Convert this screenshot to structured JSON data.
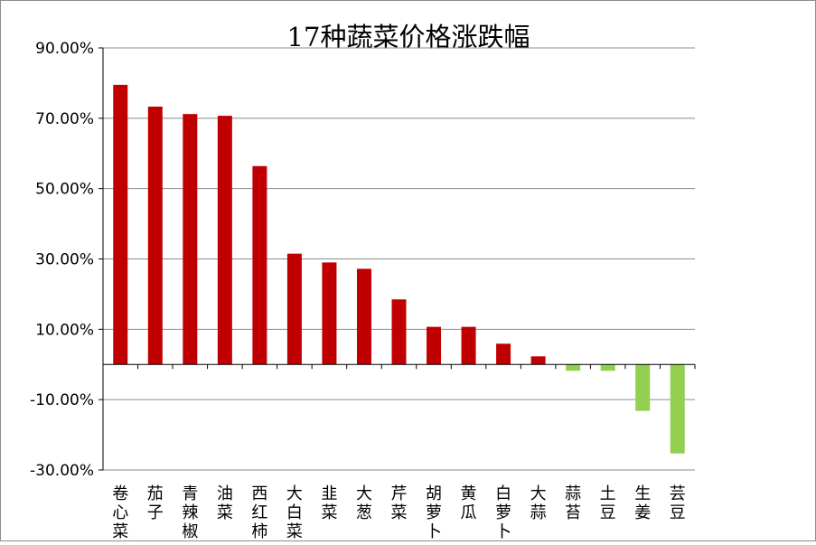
{
  "chart_data": {
    "type": "bar",
    "title": "17种蔬菜价格涨跌幅",
    "xlabel": "",
    "ylabel": "",
    "ylim": [
      -0.3,
      0.9
    ],
    "yticks": [
      -0.3,
      -0.1,
      0.1,
      0.3,
      0.5,
      0.7,
      0.9
    ],
    "ytick_labels": [
      "-30.00%",
      "-10.00%",
      "10.00%",
      "30.00%",
      "50.00%",
      "70.00%",
      "90.00%"
    ],
    "grid": true,
    "legend": "none",
    "colors": {
      "positive": "#c00000",
      "negative": "#92d050",
      "grid": "#8c8c8c",
      "axis": "#000000"
    },
    "categories": [
      "卷心菜",
      "茄子",
      "青辣椒",
      "油菜",
      "西红柿",
      "大白菜",
      "韭菜",
      "大葱",
      "芹菜",
      "胡萝卜",
      "黄瓜",
      "白萝卜",
      "大蒜",
      "蒜苔",
      "土豆",
      "生姜",
      "芸豆"
    ],
    "values": [
      0.795,
      0.733,
      0.712,
      0.707,
      0.564,
      0.315,
      0.29,
      0.272,
      0.185,
      0.107,
      0.107,
      0.059,
      0.023,
      -0.018,
      -0.018,
      -0.132,
      -0.253
    ]
  }
}
